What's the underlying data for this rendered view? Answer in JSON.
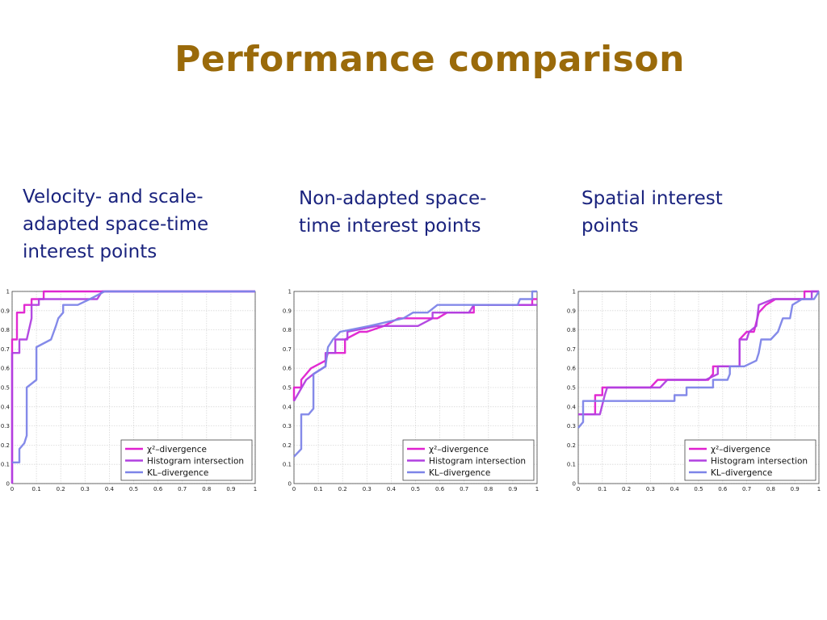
{
  "slide": {
    "title": "Performance comparison",
    "captions": [
      [
        "Velocity- and scale-",
        "adapted space-time",
        "interest points"
      ],
      [
        "Non-adapted space-",
        "time interest points"
      ],
      [
        "Spatial interest",
        "points"
      ]
    ]
  },
  "colors": {
    "title": "#9a6a0a",
    "caption": "#1a237e",
    "chi2": "#e020d0",
    "hist": "#b040e0",
    "kl": "#7d84e8"
  },
  "chart_data": [
    {
      "type": "line",
      "xlim": [
        0,
        1
      ],
      "ylim": [
        0,
        1
      ],
      "grid": true,
      "legend_position": "bottom-right",
      "xticks": [
        "0",
        "0.1",
        "0.2",
        "0.3",
        "0.4",
        "0.5",
        "0.6",
        "0.7",
        "0.8",
        "0.9",
        "1"
      ],
      "yticks": [
        "0",
        "0.1",
        "0.2",
        "0.3",
        "0.4",
        "0.5",
        "0.6",
        "0.7",
        "0.8",
        "0.9",
        "1"
      ],
      "series": [
        {
          "name": "χ²–divergence",
          "color": "#e020d0",
          "points": [
            [
              0,
              0
            ],
            [
              0,
              0.75
            ],
            [
              0.02,
              0.75
            ],
            [
              0.02,
              0.89
            ],
            [
              0.05,
              0.89
            ],
            [
              0.05,
              0.93
            ],
            [
              0.08,
              0.93
            ],
            [
              0.08,
              0.96
            ],
            [
              0.13,
              0.96
            ],
            [
              0.13,
              1
            ],
            [
              1,
              1
            ]
          ]
        },
        {
          "name": "Histogram intersection",
          "color": "#b040e0",
          "points": [
            [
              0,
              0
            ],
            [
              0,
              0.68
            ],
            [
              0.03,
              0.68
            ],
            [
              0.03,
              0.75
            ],
            [
              0.06,
              0.75
            ],
            [
              0.08,
              0.86
            ],
            [
              0.08,
              0.93
            ],
            [
              0.11,
              0.93
            ],
            [
              0.11,
              0.96
            ],
            [
              0.35,
              0.96
            ],
            [
              0.37,
              1
            ],
            [
              1,
              1
            ]
          ]
        },
        {
          "name": "KL–divergence",
          "color": "#7d84e8",
          "points": [
            [
              0,
              0.11
            ],
            [
              0.03,
              0.11
            ],
            [
              0.03,
              0.18
            ],
            [
              0.05,
              0.21
            ],
            [
              0.06,
              0.25
            ],
            [
              0.06,
              0.5
            ],
            [
              0.1,
              0.54
            ],
            [
              0.1,
              0.71
            ],
            [
              0.16,
              0.75
            ],
            [
              0.18,
              0.82
            ],
            [
              0.19,
              0.86
            ],
            [
              0.21,
              0.89
            ],
            [
              0.21,
              0.93
            ],
            [
              0.27,
              0.93
            ],
            [
              0.32,
              0.96
            ],
            [
              0.38,
              1
            ],
            [
              1,
              1
            ]
          ]
        }
      ]
    },
    {
      "type": "line",
      "xlim": [
        0,
        1
      ],
      "ylim": [
        0,
        1
      ],
      "grid": true,
      "legend_position": "bottom-right",
      "xticks": [
        "0",
        "0.1",
        "0.2",
        "0.3",
        "0.4",
        "0.5",
        "0.6",
        "0.7",
        "0.8",
        "0.9",
        "1"
      ],
      "yticks": [
        "0",
        "0.1",
        "0.2",
        "0.3",
        "0.4",
        "0.5",
        "0.6",
        "0.7",
        "0.8",
        "0.9",
        "1"
      ],
      "series": [
        {
          "name": "χ²–divergence",
          "color": "#e020d0",
          "points": [
            [
              0,
              0.43
            ],
            [
              0,
              0.5
            ],
            [
              0.03,
              0.5
            ],
            [
              0.03,
              0.54
            ],
            [
              0.07,
              0.6
            ],
            [
              0.13,
              0.64
            ],
            [
              0.14,
              0.68
            ],
            [
              0.21,
              0.68
            ],
            [
              0.21,
              0.75
            ],
            [
              0.27,
              0.79
            ],
            [
              0.3,
              0.79
            ],
            [
              0.37,
              0.82
            ],
            [
              0.43,
              0.86
            ],
            [
              0.59,
              0.86
            ],
            [
              0.63,
              0.89
            ],
            [
              0.74,
              0.89
            ],
            [
              0.74,
              0.93
            ],
            [
              0.98,
              0.93
            ],
            [
              0.98,
              0.96
            ],
            [
              1,
              0.96
            ]
          ]
        },
        {
          "name": "Histogram intersection",
          "color": "#b040e0",
          "points": [
            [
              0,
              0.43
            ],
            [
              0.05,
              0.54
            ],
            [
              0.08,
              0.57
            ],
            [
              0.13,
              0.61
            ],
            [
              0.13,
              0.68
            ],
            [
              0.17,
              0.68
            ],
            [
              0.17,
              0.75
            ],
            [
              0.22,
              0.75
            ],
            [
              0.22,
              0.79
            ],
            [
              0.34,
              0.82
            ],
            [
              0.39,
              0.82
            ],
            [
              0.51,
              0.82
            ],
            [
              0.57,
              0.86
            ],
            [
              0.57,
              0.89
            ],
            [
              0.72,
              0.89
            ],
            [
              0.74,
              0.93
            ],
            [
              1,
              0.93
            ]
          ]
        },
        {
          "name": "KL–divergence",
          "color": "#7d84e8",
          "points": [
            [
              0,
              0.14
            ],
            [
              0.03,
              0.18
            ],
            [
              0.03,
              0.36
            ],
            [
              0.06,
              0.36
            ],
            [
              0.08,
              0.39
            ],
            [
              0.08,
              0.57
            ],
            [
              0.13,
              0.61
            ],
            [
              0.14,
              0.71
            ],
            [
              0.16,
              0.75
            ],
            [
              0.19,
              0.79
            ],
            [
              0.31,
              0.82
            ],
            [
              0.45,
              0.86
            ],
            [
              0.49,
              0.89
            ],
            [
              0.55,
              0.89
            ],
            [
              0.59,
              0.93
            ],
            [
              0.92,
              0.93
            ],
            [
              0.93,
              0.96
            ],
            [
              0.98,
              0.96
            ],
            [
              0.98,
              1
            ],
            [
              1,
              1
            ]
          ]
        }
      ]
    },
    {
      "type": "line",
      "xlim": [
        0,
        1
      ],
      "ylim": [
        0,
        1
      ],
      "grid": true,
      "legend_position": "bottom-right",
      "xticks": [
        "0",
        "0.1",
        "0.2",
        "0.3",
        "0.4",
        "0.5",
        "0.6",
        "0.7",
        "0.8",
        "0.9",
        "1"
      ],
      "yticks": [
        "0",
        "0.1",
        "0.2",
        "0.3",
        "0.4",
        "0.5",
        "0.6",
        "0.7",
        "0.8",
        "0.9",
        "1"
      ],
      "series": [
        {
          "name": "χ²–divergence",
          "color": "#e020d0",
          "points": [
            [
              0,
              0.36
            ],
            [
              0.07,
              0.36
            ],
            [
              0.07,
              0.46
            ],
            [
              0.1,
              0.46
            ],
            [
              0.1,
              0.5
            ],
            [
              0.3,
              0.5
            ],
            [
              0.33,
              0.54
            ],
            [
              0.54,
              0.54
            ],
            [
              0.56,
              0.57
            ],
            [
              0.56,
              0.61
            ],
            [
              0.67,
              0.61
            ],
            [
              0.67,
              0.75
            ],
            [
              0.7,
              0.79
            ],
            [
              0.73,
              0.79
            ],
            [
              0.75,
              0.89
            ],
            [
              0.78,
              0.93
            ],
            [
              0.82,
              0.96
            ],
            [
              0.94,
              0.96
            ],
            [
              0.94,
              1
            ],
            [
              1,
              1
            ]
          ]
        },
        {
          "name": "Histogram intersection",
          "color": "#b040e0",
          "points": [
            [
              0,
              0.36
            ],
            [
              0.09,
              0.36
            ],
            [
              0.11,
              0.46
            ],
            [
              0.12,
              0.5
            ],
            [
              0.34,
              0.5
            ],
            [
              0.37,
              0.54
            ],
            [
              0.53,
              0.54
            ],
            [
              0.58,
              0.57
            ],
            [
              0.58,
              0.61
            ],
            [
              0.67,
              0.61
            ],
            [
              0.67,
              0.75
            ],
            [
              0.7,
              0.75
            ],
            [
              0.71,
              0.79
            ],
            [
              0.74,
              0.82
            ],
            [
              0.75,
              0.93
            ],
            [
              0.81,
              0.96
            ],
            [
              0.97,
              0.96
            ],
            [
              0.97,
              1
            ],
            [
              1,
              1
            ]
          ]
        },
        {
          "name": "KL–divergence",
          "color": "#7d84e8",
          "points": [
            [
              0,
              0.29
            ],
            [
              0.02,
              0.32
            ],
            [
              0.02,
              0.43
            ],
            [
              0.06,
              0.43
            ],
            [
              0.06,
              0.43
            ],
            [
              0.4,
              0.43
            ],
            [
              0.4,
              0.46
            ],
            [
              0.45,
              0.46
            ],
            [
              0.45,
              0.5
            ],
            [
              0.56,
              0.5
            ],
            [
              0.56,
              0.54
            ],
            [
              0.62,
              0.54
            ],
            [
              0.63,
              0.57
            ],
            [
              0.63,
              0.61
            ],
            [
              0.69,
              0.61
            ],
            [
              0.74,
              0.64
            ],
            [
              0.75,
              0.68
            ],
            [
              0.76,
              0.75
            ],
            [
              0.8,
              0.75
            ],
            [
              0.83,
              0.79
            ],
            [
              0.85,
              0.86
            ],
            [
              0.88,
              0.86
            ],
            [
              0.89,
              0.93
            ],
            [
              0.93,
              0.96
            ],
            [
              0.98,
              0.96
            ],
            [
              1,
              1
            ]
          ]
        }
      ]
    }
  ]
}
